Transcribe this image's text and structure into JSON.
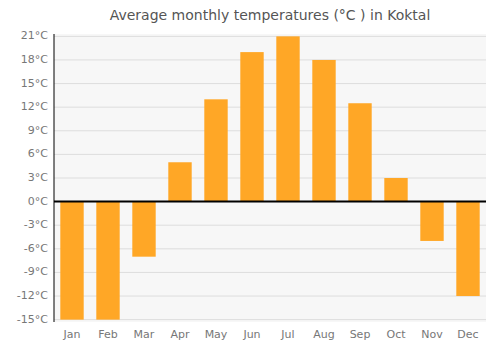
{
  "chart_data": {
    "type": "bar",
    "title": "Average monthly temperatures (°C ) in Koktal",
    "categories": [
      "Jan",
      "Feb",
      "Mar",
      "Apr",
      "May",
      "Jun",
      "Jul",
      "Aug",
      "Sep",
      "Oct",
      "Nov",
      "Dec"
    ],
    "values": [
      -15,
      -15,
      -7,
      5,
      13,
      19,
      21,
      18,
      12.5,
      3,
      -5,
      -12
    ],
    "color": "#FFA726",
    "ylim": [
      -15.3,
      21.3
    ],
    "yticks": [
      {
        "value": -15,
        "label": "-15°C"
      },
      {
        "value": -12,
        "label": "-12°C"
      },
      {
        "value": -9,
        "label": "-9°C"
      },
      {
        "value": -6,
        "label": "-6°C"
      },
      {
        "value": -3,
        "label": "-3°C"
      },
      {
        "value": 0,
        "label": "0°C"
      },
      {
        "value": 3,
        "label": "3°C"
      },
      {
        "value": 6,
        "label": "6°C"
      },
      {
        "value": 9,
        "label": "9°C"
      },
      {
        "value": 12,
        "label": "12°C"
      },
      {
        "value": 15,
        "label": "15°C"
      },
      {
        "value": 18,
        "label": "18°C"
      },
      {
        "value": 21,
        "label": "21°C"
      }
    ],
    "grid": true
  }
}
